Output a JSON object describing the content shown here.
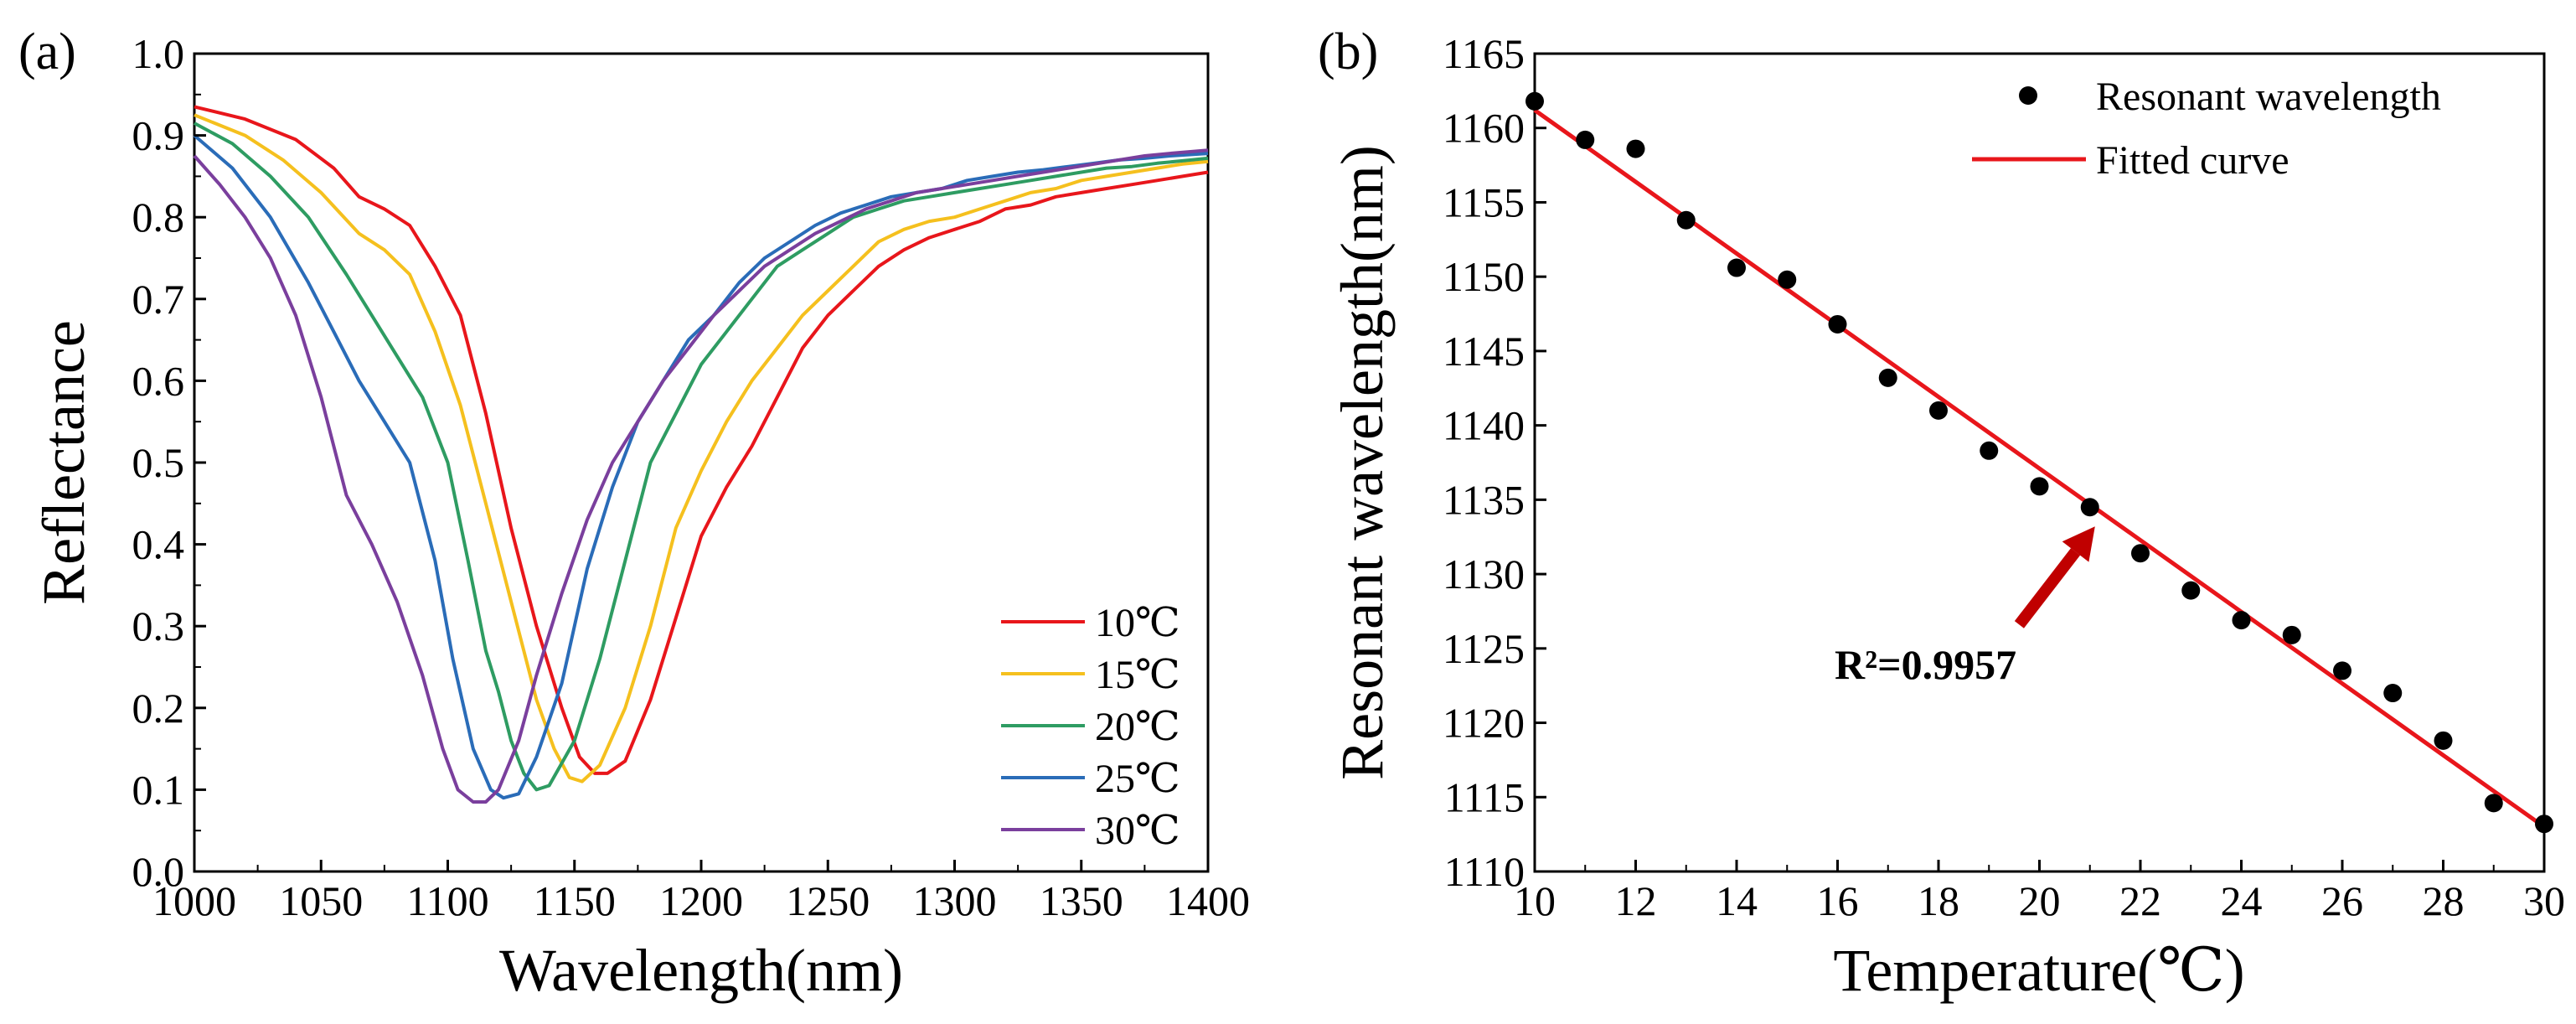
{
  "chart_data": [
    {
      "panel_label": "(a)",
      "type": "line",
      "xlabel": "Wavelength(nm)",
      "ylabel": "Reflectance",
      "xlim": [
        1000,
        1400
      ],
      "ylim": [
        0.0,
        1.0
      ],
      "x_ticks": [
        "1000",
        "1050",
        "1100",
        "1150",
        "1200",
        "1250",
        "1300",
        "1350",
        "1400"
      ],
      "y_ticks": [
        "0.0",
        "0.1",
        "0.2",
        "0.3",
        "0.4",
        "0.5",
        "0.6",
        "0.7",
        "0.8",
        "0.9",
        "1.0"
      ],
      "x_tick_values": [
        1000,
        1050,
        1100,
        1150,
        1200,
        1250,
        1300,
        1350,
        1400
      ],
      "y_tick_values": [
        0.0,
        0.1,
        0.2,
        0.3,
        0.4,
        0.5,
        0.6,
        0.7,
        0.8,
        0.9,
        1.0
      ],
      "legend_position": "bottom-right",
      "series": [
        {
          "name": "10℃",
          "color": "#e8161b",
          "x": [
            1000,
            1020,
            1040,
            1055,
            1065,
            1075,
            1085,
            1095,
            1105,
            1115,
            1125,
            1135,
            1145,
            1152,
            1158,
            1163,
            1170,
            1180,
            1190,
            1200,
            1210,
            1220,
            1230,
            1240,
            1250,
            1260,
            1270,
            1280,
            1290,
            1300,
            1310,
            1320,
            1330,
            1340,
            1350,
            1360,
            1370,
            1380,
            1390,
            1400
          ],
          "y": [
            0.935,
            0.92,
            0.895,
            0.86,
            0.825,
            0.81,
            0.79,
            0.74,
            0.68,
            0.56,
            0.42,
            0.3,
            0.2,
            0.14,
            0.12,
            0.12,
            0.135,
            0.21,
            0.31,
            0.41,
            0.47,
            0.52,
            0.58,
            0.64,
            0.68,
            0.71,
            0.74,
            0.76,
            0.775,
            0.785,
            0.795,
            0.81,
            0.815,
            0.825,
            0.83,
            0.835,
            0.84,
            0.845,
            0.85,
            0.855
          ]
        },
        {
          "name": "15℃",
          "color": "#f5c01e",
          "x": [
            1000,
            1020,
            1035,
            1050,
            1065,
            1075,
            1085,
            1095,
            1105,
            1115,
            1125,
            1135,
            1142,
            1148,
            1153,
            1160,
            1170,
            1180,
            1190,
            1200,
            1210,
            1220,
            1230,
            1240,
            1250,
            1260,
            1270,
            1280,
            1290,
            1300,
            1310,
            1320,
            1330,
            1340,
            1350,
            1360,
            1370,
            1380,
            1390,
            1400
          ],
          "y": [
            0.925,
            0.9,
            0.87,
            0.83,
            0.78,
            0.76,
            0.73,
            0.66,
            0.57,
            0.45,
            0.33,
            0.21,
            0.15,
            0.115,
            0.11,
            0.13,
            0.2,
            0.3,
            0.42,
            0.49,
            0.55,
            0.6,
            0.64,
            0.68,
            0.71,
            0.74,
            0.77,
            0.785,
            0.795,
            0.8,
            0.81,
            0.82,
            0.83,
            0.835,
            0.845,
            0.85,
            0.855,
            0.86,
            0.865,
            0.868
          ]
        },
        {
          "name": "20℃",
          "color": "#2e9c62",
          "x": [
            1000,
            1015,
            1030,
            1045,
            1060,
            1070,
            1080,
            1090,
            1100,
            1108,
            1115,
            1120,
            1125,
            1130,
            1135,
            1140,
            1150,
            1160,
            1170,
            1180,
            1190,
            1200,
            1210,
            1220,
            1230,
            1240,
            1250,
            1260,
            1270,
            1280,
            1290,
            1300,
            1310,
            1320,
            1330,
            1340,
            1350,
            1360,
            1370,
            1380,
            1390,
            1400
          ],
          "y": [
            0.915,
            0.89,
            0.85,
            0.8,
            0.73,
            0.68,
            0.63,
            0.58,
            0.5,
            0.38,
            0.27,
            0.22,
            0.16,
            0.12,
            0.1,
            0.105,
            0.16,
            0.26,
            0.38,
            0.5,
            0.56,
            0.62,
            0.66,
            0.7,
            0.74,
            0.76,
            0.78,
            0.8,
            0.81,
            0.82,
            0.825,
            0.83,
            0.835,
            0.84,
            0.845,
            0.85,
            0.855,
            0.86,
            0.862,
            0.866,
            0.869,
            0.872
          ]
        },
        {
          "name": "25℃",
          "color": "#2a6cb8",
          "x": [
            1000,
            1015,
            1030,
            1045,
            1055,
            1065,
            1075,
            1085,
            1095,
            1102,
            1110,
            1117,
            1122,
            1128,
            1135,
            1145,
            1155,
            1165,
            1175,
            1185,
            1195,
            1205,
            1215,
            1225,
            1235,
            1245,
            1255,
            1265,
            1275,
            1285,
            1295,
            1305,
            1315,
            1325,
            1335,
            1345,
            1355,
            1365,
            1375,
            1385,
            1400
          ],
          "y": [
            0.9,
            0.86,
            0.8,
            0.72,
            0.66,
            0.6,
            0.55,
            0.5,
            0.38,
            0.26,
            0.15,
            0.1,
            0.09,
            0.095,
            0.14,
            0.23,
            0.37,
            0.47,
            0.55,
            0.6,
            0.65,
            0.68,
            0.72,
            0.75,
            0.77,
            0.79,
            0.805,
            0.815,
            0.825,
            0.83,
            0.835,
            0.845,
            0.85,
            0.855,
            0.858,
            0.862,
            0.866,
            0.87,
            0.872,
            0.875,
            0.878
          ]
        },
        {
          "name": "30℃",
          "color": "#7a3f9d",
          "x": [
            1000,
            1010,
            1020,
            1030,
            1040,
            1050,
            1060,
            1070,
            1080,
            1090,
            1098,
            1104,
            1110,
            1115,
            1120,
            1128,
            1135,
            1145,
            1155,
            1165,
            1175,
            1185,
            1195,
            1205,
            1215,
            1225,
            1235,
            1245,
            1255,
            1265,
            1275,
            1285,
            1295,
            1305,
            1315,
            1325,
            1335,
            1345,
            1355,
            1365,
            1375,
            1385,
            1400
          ],
          "y": [
            0.875,
            0.84,
            0.8,
            0.75,
            0.68,
            0.58,
            0.46,
            0.4,
            0.33,
            0.24,
            0.15,
            0.1,
            0.085,
            0.085,
            0.1,
            0.16,
            0.24,
            0.34,
            0.43,
            0.5,
            0.55,
            0.6,
            0.64,
            0.68,
            0.71,
            0.74,
            0.76,
            0.78,
            0.795,
            0.81,
            0.82,
            0.83,
            0.835,
            0.84,
            0.845,
            0.85,
            0.855,
            0.86,
            0.865,
            0.87,
            0.875,
            0.878,
            0.882
          ]
        }
      ]
    },
    {
      "panel_label": "(b)",
      "type": "scatter",
      "xlabel": "Temperature(℃)",
      "ylabel": "Resonant wavelength(nm)",
      "xlim": [
        10,
        30
      ],
      "ylim": [
        1110,
        1165
      ],
      "x_ticks": [
        "10",
        "12",
        "14",
        "16",
        "18",
        "20",
        "22",
        "24",
        "26",
        "28",
        "30"
      ],
      "y_ticks": [
        "1110",
        "1115",
        "1120",
        "1125",
        "1130",
        "1135",
        "1140",
        "1145",
        "1150",
        "1155",
        "1160",
        "1165"
      ],
      "x_tick_values": [
        10,
        12,
        14,
        16,
        18,
        20,
        22,
        24,
        26,
        28,
        30
      ],
      "y_tick_values": [
        1110,
        1115,
        1120,
        1125,
        1130,
        1135,
        1140,
        1145,
        1150,
        1155,
        1160,
        1165
      ],
      "legend_position": "top-right",
      "series": [
        {
          "name": "Resonant wavelength",
          "kind": "scatter",
          "color": "#000000",
          "x": [
            10,
            11,
            12,
            13,
            14,
            15,
            16,
            17,
            18,
            19,
            20,
            21,
            22,
            23,
            24,
            25,
            26,
            27,
            28,
            29,
            30
          ],
          "y": [
            1161.8,
            1159.2,
            1158.6,
            1153.8,
            1150.6,
            1149.8,
            1146.8,
            1143.2,
            1141.0,
            1138.3,
            1135.9,
            1134.5,
            1131.4,
            1128.9,
            1126.9,
            1125.9,
            1123.5,
            1122.0,
            1118.8,
            1114.6,
            1113.2
          ]
        },
        {
          "name": "Fitted curve",
          "kind": "line",
          "color": "#e8161b",
          "x": [
            10,
            30
          ],
          "y": [
            1161.2,
            1113.0
          ]
        }
      ],
      "annotation": {
        "text": "R²=0.9957",
        "arrow_color": "#c00000",
        "arrow_tip": [
          21.1,
          1133.2
        ],
        "arrow_tail": [
          19.6,
          1126.6
        ]
      }
    }
  ]
}
